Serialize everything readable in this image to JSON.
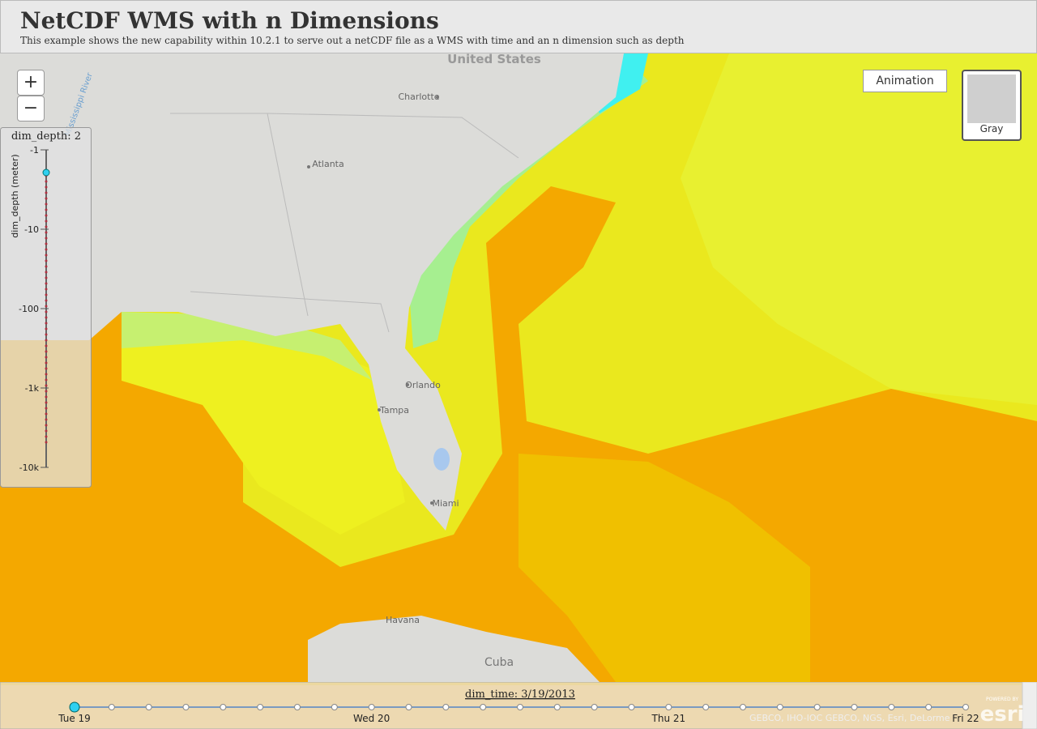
{
  "header": {
    "title": "NetCDF WMS with n Dimensions",
    "subtitle": "This example shows the new capability within 10.2.1 to serve out a netCDF file as a WMS with time and an n dimension such as depth"
  },
  "map": {
    "labels": [
      "United States",
      "Charlotte",
      "Atlanta",
      "Mississippi River",
      "Orlando",
      "Tampa",
      "Miami",
      "Havana",
      "Cuba"
    ],
    "zoom_in": "+",
    "zoom_out": "−",
    "animation_button": "Animation",
    "basemap": "Gray",
    "attribution": "GEBCO, IHO-IOC GEBCO, NGS, Esri, DeLorme",
    "powered_by": "POWERED BY",
    "logo": "esri"
  },
  "depth_slider": {
    "label": "dim_depth: 2",
    "axis_title": "dim_depth (meter)",
    "ticks": [
      "-1",
      "-10",
      "-100",
      "-1k",
      "-10k"
    ]
  },
  "time_slider": {
    "label": "dim_time: 3/19/2013",
    "ticks": [
      "Tue 19",
      "Wed 20",
      "Thu 21",
      "Fri 22"
    ]
  }
}
